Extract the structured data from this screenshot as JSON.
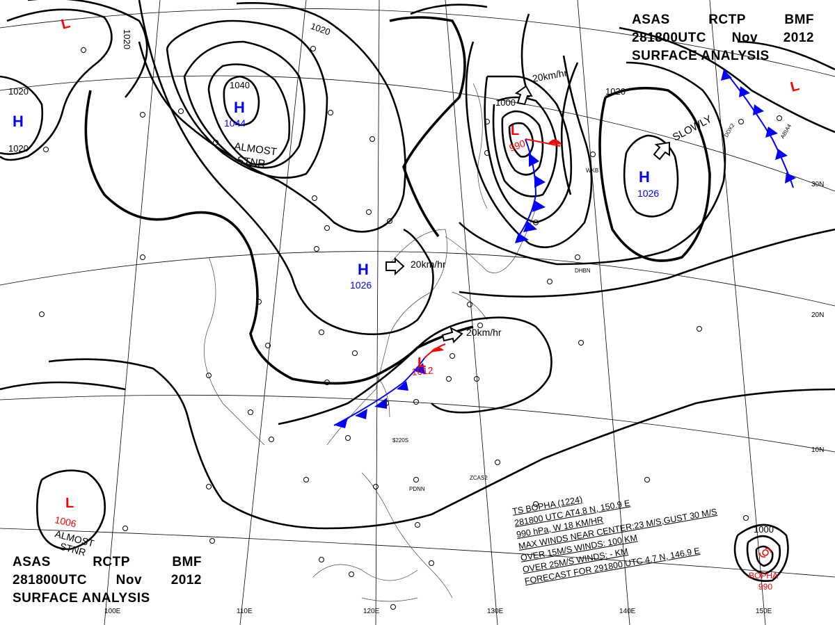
{
  "header_top": {
    "agency": "ASAS",
    "station": "RCTP",
    "office": "BMF",
    "time": "281800UTC",
    "month": "Nov",
    "year": "2012",
    "title": "SURFACE ANALYSIS"
  },
  "header_bottom": {
    "agency": "ASAS",
    "station": "RCTP",
    "office": "BMF",
    "time": "281800UTC",
    "month": "Nov",
    "year": "2012",
    "title": "SURFACE ANALYSIS"
  },
  "pressure_centers": [
    {
      "type": "H",
      "value": "1044",
      "note": "ALMOST STNR"
    },
    {
      "type": "H",
      "value": "1026",
      "motion": "20km/hr"
    },
    {
      "type": "H",
      "value": "1026",
      "motion": "SLOWLY"
    },
    {
      "type": "H",
      "value": ""
    },
    {
      "type": "L",
      "value": "990",
      "motion": "20km/hr"
    },
    {
      "type": "L",
      "value": "1012",
      "motion": "20km/hr"
    },
    {
      "type": "L",
      "value": "1006",
      "note": "ALMOST STNR"
    },
    {
      "type": "L",
      "value": ""
    },
    {
      "type": "L",
      "value": ""
    },
    {
      "type": "TS",
      "name": "BOPHA",
      "value": "990"
    }
  ],
  "labels": {
    "h1044": "H",
    "h1044_val": "1044",
    "almost_stnr_1": "ALMOST",
    "almost_stnr_2": "STNR",
    "h1026w": "H",
    "h1026w_val": "1026",
    "h1026w_motion": "20km/hr",
    "h1026e": "H",
    "h1026e_val": "1026",
    "h1026e_motion": "SLOWLY",
    "hwest": "H",
    "l990": "L",
    "l990_val": "990",
    "l990_motion": "20km/hr",
    "l1012": "L",
    "l1012_val": "1012",
    "l1012_motion": "20km/hr",
    "l1006": "L",
    "l1006_val": "1006",
    "l1006_note1": "ALMOST",
    "l1006_note2": "STNR",
    "lnw": "L",
    "lne": "L",
    "bopha_name": "BOPHA",
    "bopha_val": "990"
  },
  "isobar_labels": [
    "1020",
    "1020",
    "1020",
    "1040",
    "1020",
    "1000",
    "1020",
    "1000"
  ],
  "latitude_labels": [
    "30N",
    "20N",
    "10N"
  ],
  "longitude_labels": [
    "100E",
    "110E",
    "120E",
    "130E",
    "140E",
    "150E"
  ],
  "storm_info": {
    "line1": "TS BOPHA (1224)",
    "line2": "281800 UTC  AT4.8 N, 150.9 E",
    "line3": "990 hPa, W  18 KM/HR",
    "line4": "MAX WINDS NEAR CENTER:23 M/S,GUST 30 M/S",
    "line5": "OVER 15M/S WINDS: 100 KM",
    "line6": "OVER 25M/S WINDS:  - KM",
    "line7": "FORECAST FOR 291800 UTC 4.7 N, 146.9 E"
  },
  "station_labels": [
    "DHBN",
    "ZCAS2",
    "PDNN",
    "ABIA4",
    "DDX2",
    "WKB",
    "$220S"
  ],
  "colors": {
    "high": "#0000ff",
    "low": "#ff0000",
    "cold_front": "#0000ff",
    "warm_front": "#ff0000",
    "isobar": "#000000",
    "grid": "#000000"
  }
}
